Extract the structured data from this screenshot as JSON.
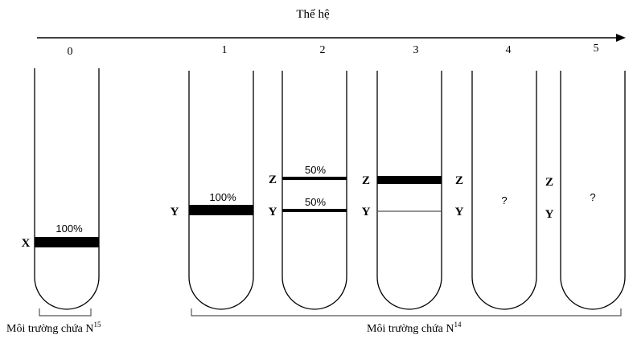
{
  "axis_title": "Thế hệ",
  "generations": [
    "0",
    "1",
    "2",
    "3",
    "4",
    "5"
  ],
  "tubes": [
    {
      "generation": "0",
      "left_label": "X",
      "band_labels": [
        "100%"
      ],
      "right_labels": [],
      "question": ""
    },
    {
      "generation": "1",
      "left_label": "Y",
      "band_labels": [
        "100%"
      ],
      "right_labels": [],
      "question": ""
    },
    {
      "generation": "2",
      "left_labels": [
        "Z",
        "Y"
      ],
      "band_labels": [
        "50%",
        "50%"
      ],
      "right_labels": [],
      "question": ""
    },
    {
      "generation": "3",
      "left_labels": [
        "Z",
        "Y"
      ],
      "band_labels": [],
      "right_labels": [
        "Z",
        "Y"
      ],
      "question": ""
    },
    {
      "generation": "4",
      "question": "?",
      "right_labels": [
        "Z",
        "Y"
      ]
    },
    {
      "generation": "5",
      "question": "?"
    }
  ],
  "labels": {
    "x": "X",
    "y": "Y",
    "z": "Z",
    "pct100": "100%",
    "pct50": "50%",
    "question": "?"
  },
  "environment": {
    "n15": "Môi trường chứa N",
    "n15_sup": "15",
    "n14": "Môi trường chứa N",
    "n14_sup": "14"
  }
}
